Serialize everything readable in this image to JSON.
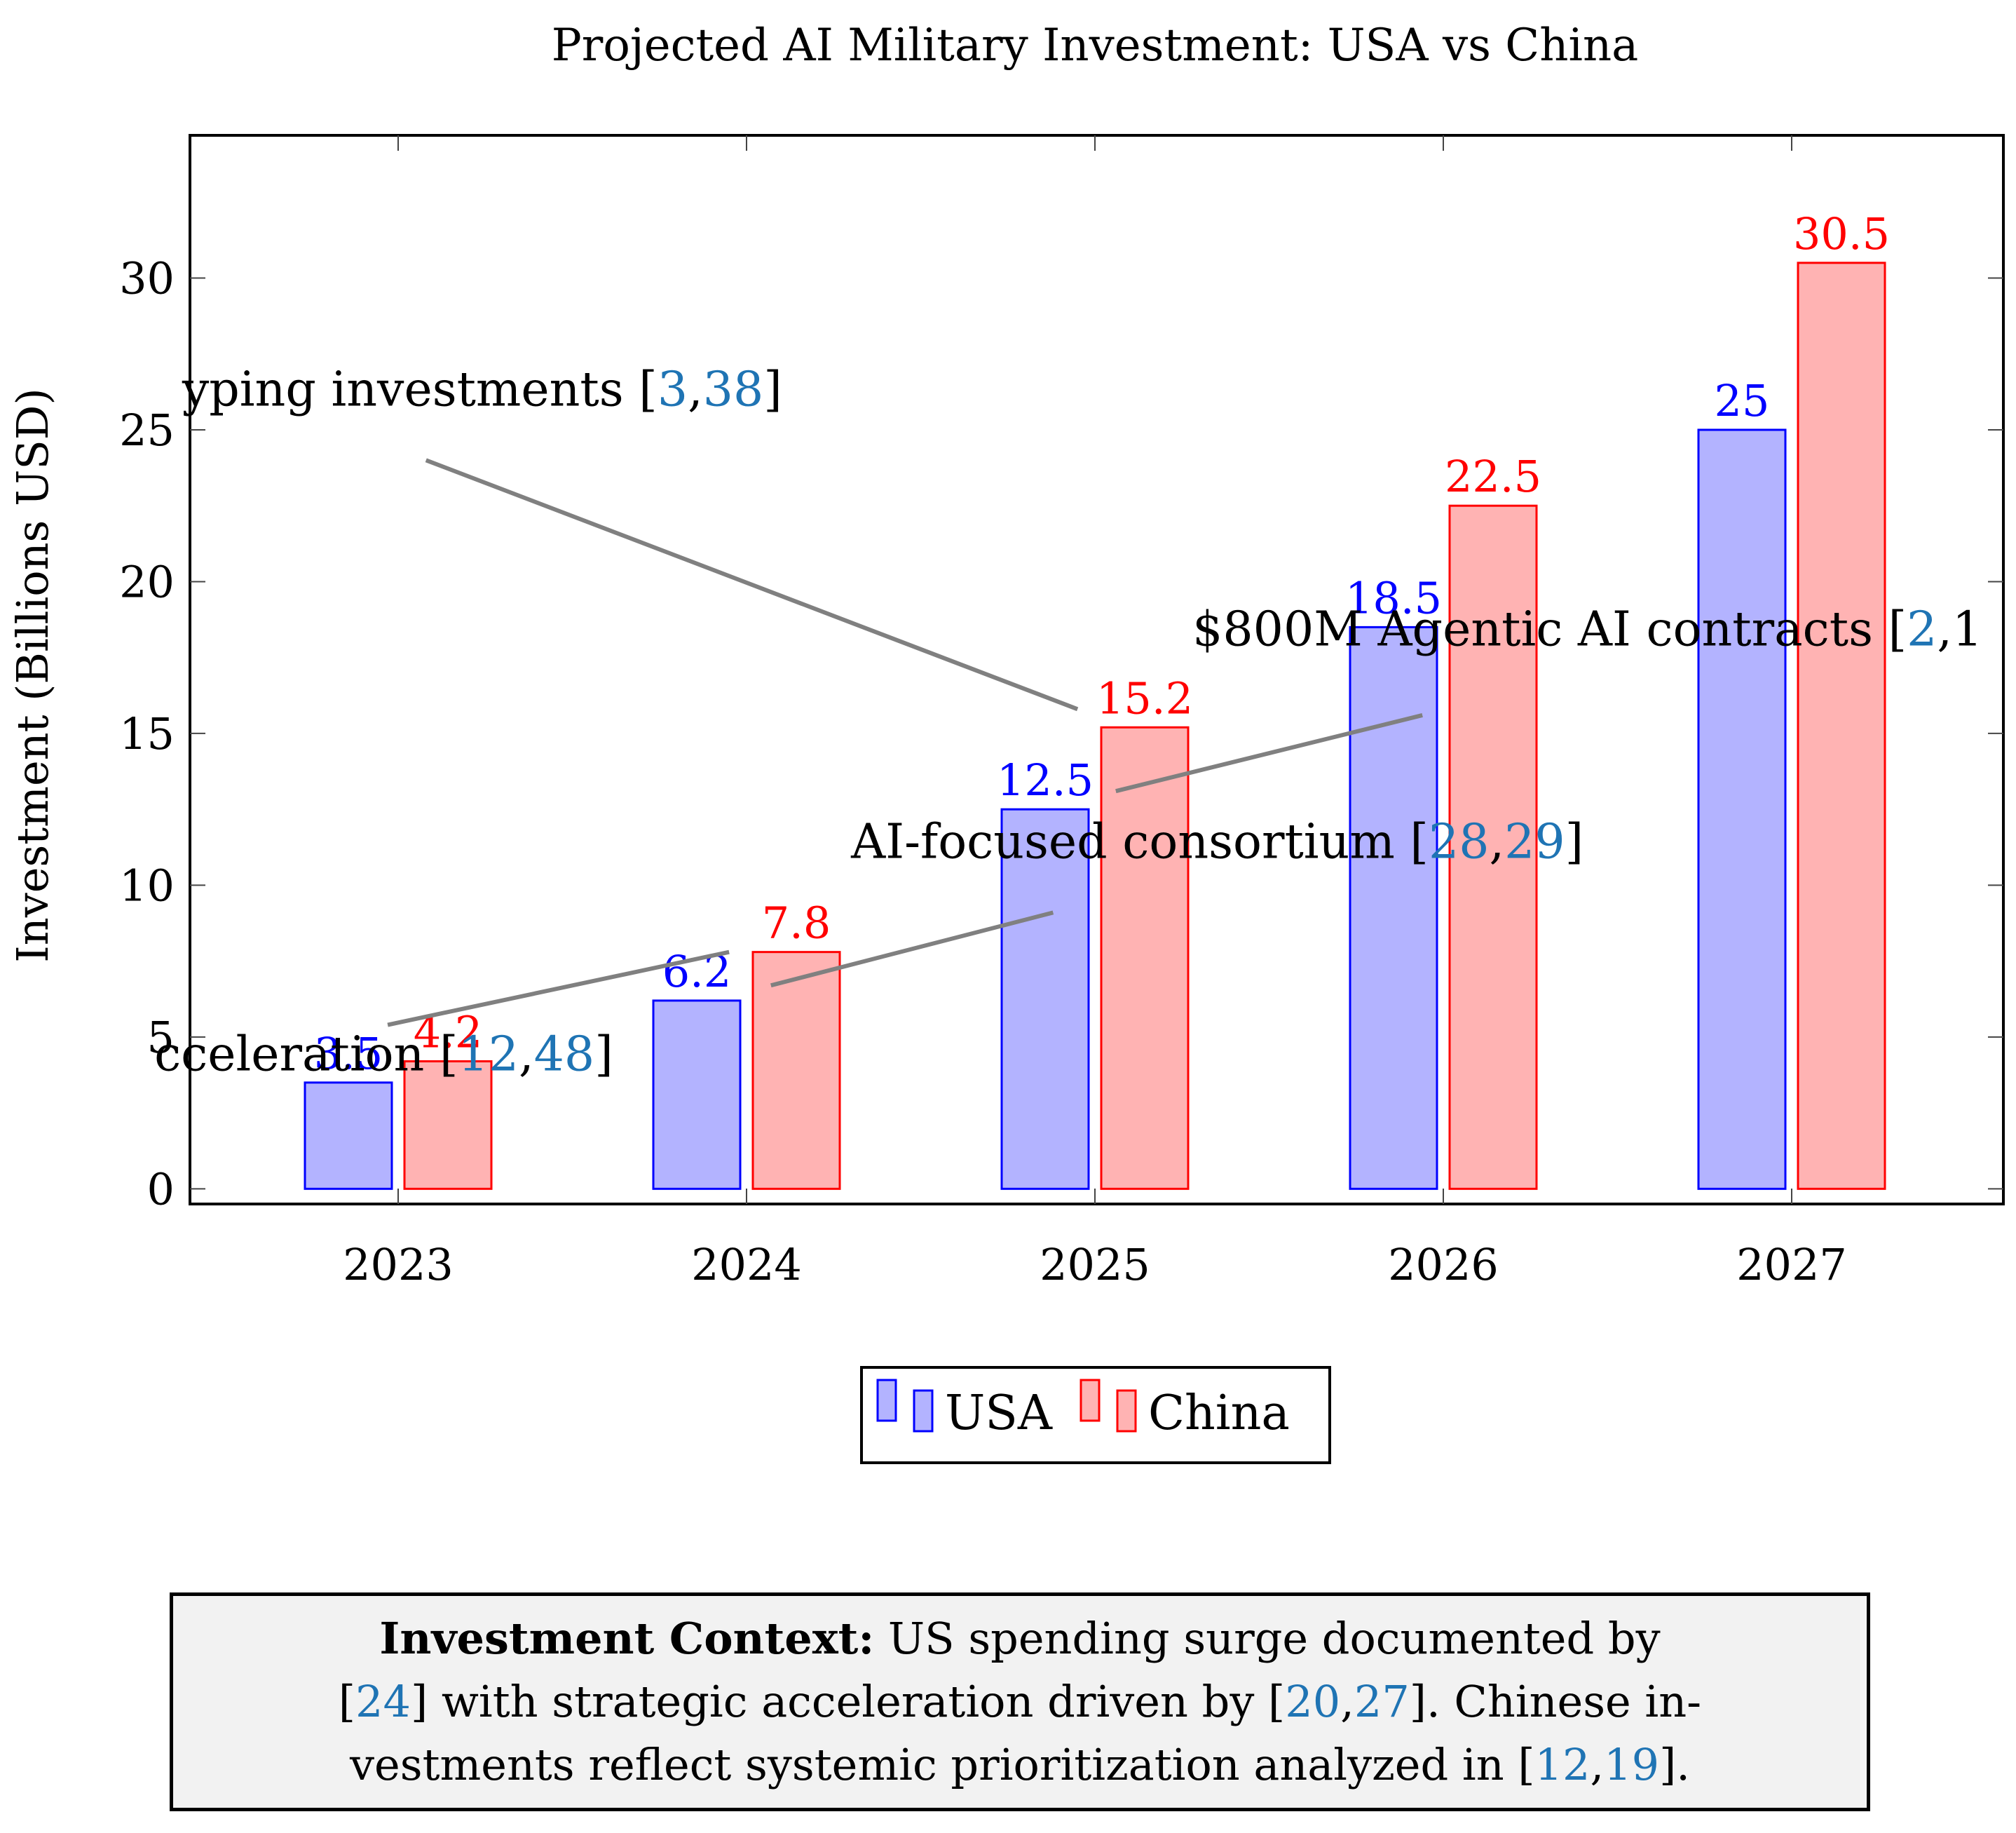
{
  "chart_data": {
    "type": "bar",
    "title": "Projected AI Military Investment: USA vs China",
    "xlabel": "",
    "ylabel": "Investment (Billions USD)",
    "categories": [
      "2023",
      "2024",
      "2025",
      "2026",
      "2027"
    ],
    "ylim": [
      -0.5,
      34.7
    ],
    "yticks": [
      0,
      5,
      10,
      15,
      20,
      25,
      30
    ],
    "grid": false,
    "legend_placement": "bottom-center",
    "series": [
      {
        "name": "USA",
        "values": [
          3.5,
          6.2,
          12.5,
          18.5,
          25
        ],
        "fill": "#b3b3ff",
        "stroke": "#0000ff",
        "label_color": "#0000ff"
      },
      {
        "name": "China",
        "values": [
          4.2,
          7.8,
          15.2,
          22.5,
          30.5
        ],
        "fill": "#ffb3b3",
        "stroke": "#ff0000",
        "label_color": "#ff0000"
      }
    ],
    "annotations": [
      {
        "text_parts": [
          {
            "t": "cceleration ["
          },
          {
            "t": "12",
            "cite": true
          },
          {
            "t": ","
          },
          {
            "t": "48",
            "cite": true
          },
          {
            "t": "]"
          }
        ],
        "x": 2022.3,
        "y": 3.9,
        "line": [
          [
            2022.97,
            5.4
          ],
          [
            2023.95,
            7.8
          ]
        ]
      },
      {
        "text_parts": [
          {
            "t": "AI-focused consortium ["
          },
          {
            "t": "28",
            "cite": true
          },
          {
            "t": ","
          },
          {
            "t": "29",
            "cite": true
          },
          {
            "t": "]"
          }
        ],
        "x": 2024.3,
        "y": 10.9,
        "line": [
          [
            2024.07,
            6.7
          ],
          [
            2024.88,
            9.1
          ]
        ]
      },
      {
        "text_parts": [
          {
            "t": "$800M Agentic AI contracts ["
          },
          {
            "t": "2",
            "cite": true
          },
          {
            "t": ",1"
          }
        ],
        "x": 2025.28,
        "y": 17.9,
        "line": [
          [
            2025.06,
            13.1
          ],
          [
            2025.94,
            15.6
          ]
        ]
      },
      {
        "text_parts": [
          {
            "t": "yping investments ["
          },
          {
            "t": "3",
            "cite": true
          },
          {
            "t": ","
          },
          {
            "t": "38",
            "cite": true
          },
          {
            "t": "]"
          }
        ],
        "x": 2022.38,
        "y": 25.8,
        "line": [
          [
            2023.08,
            24.0
          ],
          [
            2024.95,
            15.8
          ]
        ]
      }
    ]
  },
  "context_box": {
    "heading": "Investment Context:",
    "line1_rest": " US spending surge documented by",
    "line2": {
      "open": "[",
      "c1": "24",
      "mid": "] with strategic acceleration driven by [",
      "c2": "20",
      "comma": ",",
      "c3": "27",
      "close": "]. Chinese in-"
    },
    "line3": {
      "text": "vestments reflect systemic prioritization analyzed in [",
      "c1": "12",
      "comma": ",",
      "c2": "19",
      "close": "]."
    }
  }
}
